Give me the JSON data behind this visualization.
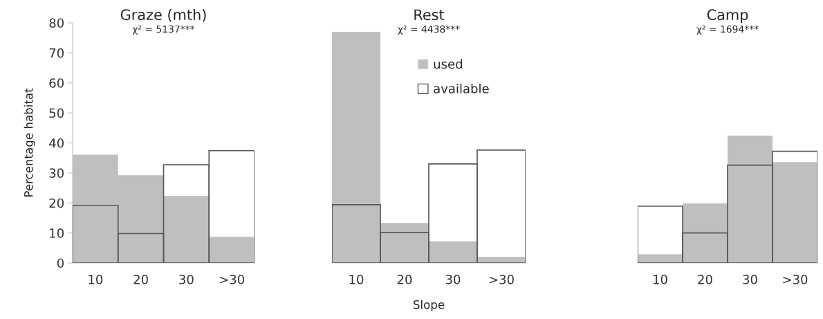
{
  "chart_data": [
    {
      "type": "bar",
      "title": "Graze (mth)",
      "annotations": [
        "χ² = 5137***"
      ],
      "ylabel": "Percentage habitat",
      "categories": [
        "10",
        "20",
        "30",
        ">30"
      ],
      "ylim": [
        0,
        80
      ],
      "yticks": [
        0,
        10,
        20,
        30,
        40,
        50,
        60,
        70,
        80
      ],
      "series": [
        {
          "color": "#bfbfbf",
          "values": [
            36.1,
            29.2,
            22.3,
            8.7
          ]
        },
        {
          "color": "#595959",
          "values": [
            19.2,
            9.8,
            32.7,
            37.4
          ]
        }
      ]
    },
    {
      "type": "bar",
      "title": "Rest",
      "annotations": [
        "χ² = 4438***"
      ],
      "xlabel": "Slope",
      "categories": [
        "10",
        "20",
        "30",
        ">30"
      ],
      "ylim": [
        0,
        80
      ],
      "tick_labels": "x",
      "legend": "top right",
      "series": [
        {
          "name": "used",
          "color": "#bfbfbf",
          "values": [
            77,
            13.3,
            7.2,
            2
          ]
        },
        {
          "name": "available",
          "color": "#595959",
          "values": [
            19.4,
            10.1,
            33,
            37.6
          ]
        }
      ]
    },
    {
      "type": "bar",
      "title": "Camp",
      "annotations": [
        "χ² = 1694***"
      ],
      "categories": [
        "10",
        "20",
        "30",
        ">30"
      ],
      "ylim": [
        0,
        80
      ],
      "tick_labels": "x",
      "series": [
        {
          "color": "#bfbfbf",
          "values": [
            2.9,
            19.8,
            42.4,
            33.6
          ]
        },
        {
          "color": "#595959",
          "values": [
            18.9,
            10,
            32.6,
            37.2
          ]
        }
      ]
    }
  ]
}
